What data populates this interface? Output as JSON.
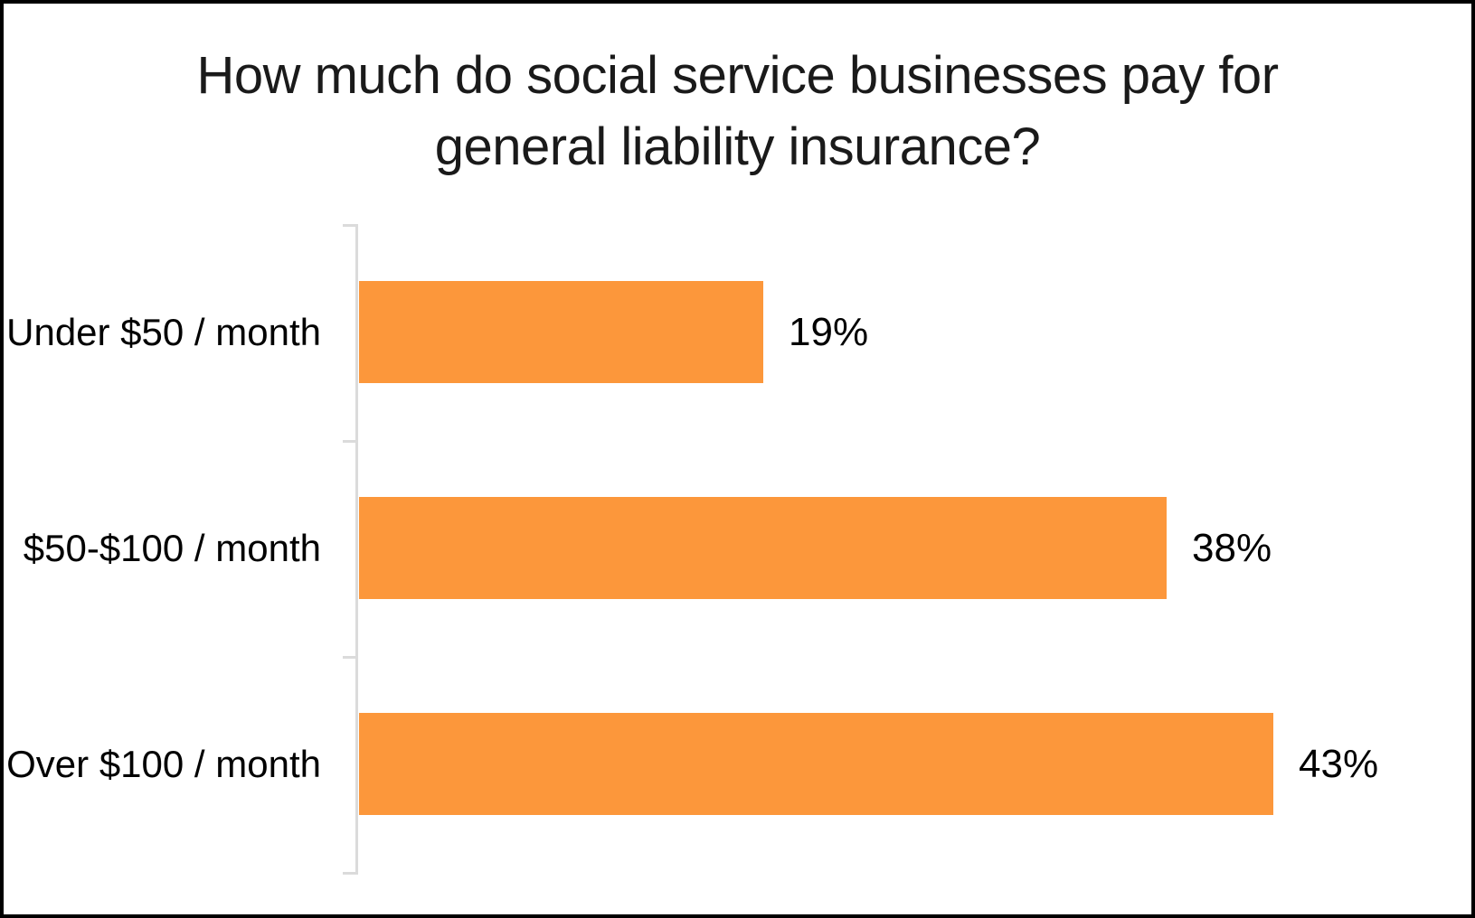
{
  "title_lines": [
    "How much do social service businesses pay for",
    "general liability insurance?"
  ],
  "chart_data": {
    "type": "bar",
    "orientation": "horizontal",
    "title": "How much do social service businesses pay for general liability insurance?",
    "categories": [
      "Under $50 / month",
      "$50-$100 / month",
      "Over $100 / month"
    ],
    "values": [
      19,
      38,
      43
    ],
    "value_labels": [
      "19%",
      "38%",
      "43%"
    ],
    "xlabel": "",
    "ylabel": "",
    "xlim": [
      0,
      45
    ],
    "grid": false,
    "legend": "none",
    "bar_color": "#FC973B",
    "axis_color": "#DBDBDB",
    "text_color": "#000000",
    "background": "#FFFFFF"
  }
}
